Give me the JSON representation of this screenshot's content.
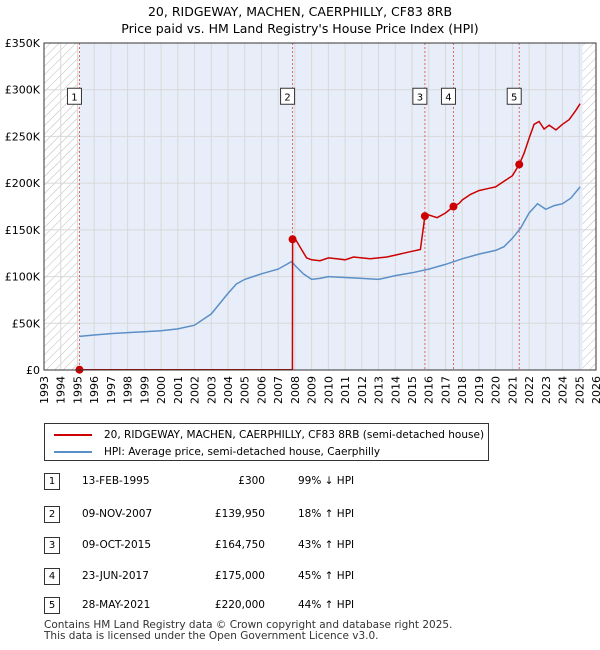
{
  "title": {
    "line1": "20, RIDGEWAY, MACHEN, CAERPHILLY, CF83 8RB",
    "line2": "Price paid vs. HM Land Registry's House Price Index (HPI)"
  },
  "colors": {
    "price_line": "#cc0000",
    "hpi_line": "#5b8fc7",
    "shade": "#e8eef9",
    "hatch": "#bbbbbb",
    "grid": "#d8d8d8",
    "vline": "#dd6666"
  },
  "chart_data": {
    "type": "line",
    "title": "Price paid vs. HM Land Registry's House Price Index (HPI)",
    "xlabel": "",
    "ylabel": "",
    "xlim": [
      1993,
      2026
    ],
    "ylim": [
      0,
      350000
    ],
    "y_ticks": [
      {
        "value": 0,
        "label": "£0"
      },
      {
        "value": 50000,
        "label": "£50K"
      },
      {
        "value": 100000,
        "label": "£100K"
      },
      {
        "value": 150000,
        "label": "£150K"
      },
      {
        "value": 200000,
        "label": "£200K"
      },
      {
        "value": 250000,
        "label": "£250K"
      },
      {
        "value": 300000,
        "label": "£300K"
      },
      {
        "value": 350000,
        "label": "£350K"
      }
    ],
    "x_ticks": [
      "1993",
      "1994",
      "1995",
      "1996",
      "1997",
      "1998",
      "1999",
      "2000",
      "2001",
      "2002",
      "2003",
      "2004",
      "2005",
      "2006",
      "2007",
      "2008",
      "2009",
      "2010",
      "2011",
      "2012",
      "2013",
      "2014",
      "2015",
      "2016",
      "2017",
      "2018",
      "2019",
      "2020",
      "2021",
      "2022",
      "2023",
      "2024",
      "2025",
      "2026"
    ],
    "hatched_ranges": [
      [
        1993,
        1995.12
      ],
      [
        2025.2,
        2026
      ]
    ],
    "shaded_range": [
      1995.12,
      2025.2
    ],
    "grid": true,
    "series": [
      {
        "name": "20, RIDGEWAY, MACHEN, CAERPHILLY, CF83 8RB (semi-detached house)",
        "color": "#cc0000",
        "points": [
          [
            1995.12,
            300
          ],
          [
            2007.85,
            300
          ],
          [
            2007.86,
            139950
          ],
          [
            2008.0,
            141000
          ],
          [
            2008.3,
            132000
          ],
          [
            2008.7,
            120000
          ],
          [
            2009.0,
            118000
          ],
          [
            2009.5,
            117000
          ],
          [
            2010.0,
            120000
          ],
          [
            2010.5,
            119000
          ],
          [
            2011.0,
            118000
          ],
          [
            2011.5,
            121000
          ],
          [
            2012.0,
            120000
          ],
          [
            2012.5,
            119000
          ],
          [
            2013.0,
            120000
          ],
          [
            2013.5,
            121000
          ],
          [
            2014.0,
            123000
          ],
          [
            2014.5,
            125000
          ],
          [
            2015.0,
            127000
          ],
          [
            2015.5,
            129000
          ],
          [
            2015.77,
            164750
          ],
          [
            2016.0,
            166000
          ],
          [
            2016.5,
            163000
          ],
          [
            2017.0,
            168000
          ],
          [
            2017.48,
            175000
          ],
          [
            2017.8,
            178000
          ],
          [
            2018.0,
            182000
          ],
          [
            2018.5,
            188000
          ],
          [
            2019.0,
            192000
          ],
          [
            2019.5,
            194000
          ],
          [
            2020.0,
            196000
          ],
          [
            2020.5,
            202000
          ],
          [
            2021.0,
            208000
          ],
          [
            2021.41,
            220000
          ],
          [
            2021.7,
            232000
          ],
          [
            2022.0,
            248000
          ],
          [
            2022.3,
            263000
          ],
          [
            2022.6,
            266000
          ],
          [
            2022.9,
            258000
          ],
          [
            2023.2,
            262000
          ],
          [
            2023.6,
            257000
          ],
          [
            2024.0,
            263000
          ],
          [
            2024.4,
            268000
          ],
          [
            2024.8,
            278000
          ],
          [
            2025.05,
            285000
          ]
        ]
      },
      {
        "name": "HPI: Average price, semi-detached house, Caerphilly",
        "color": "#5b8fc7",
        "points": [
          [
            1995.12,
            36000
          ],
          [
            1996.0,
            37500
          ],
          [
            1997.0,
            39000
          ],
          [
            1998.0,
            40000
          ],
          [
            1999.0,
            41000
          ],
          [
            2000.0,
            42000
          ],
          [
            2001.0,
            44000
          ],
          [
            2002.0,
            48000
          ],
          [
            2003.0,
            60000
          ],
          [
            2004.0,
            82000
          ],
          [
            2004.5,
            92000
          ],
          [
            2005.0,
            97000
          ],
          [
            2006.0,
            103000
          ],
          [
            2007.0,
            108000
          ],
          [
            2007.8,
            116000
          ],
          [
            2008.0,
            112000
          ],
          [
            2008.5,
            103000
          ],
          [
            2009.0,
            97000
          ],
          [
            2009.5,
            98000
          ],
          [
            2010.0,
            100000
          ],
          [
            2011.0,
            99000
          ],
          [
            2012.0,
            98000
          ],
          [
            2013.0,
            97000
          ],
          [
            2014.0,
            101000
          ],
          [
            2015.0,
            104000
          ],
          [
            2016.0,
            108000
          ],
          [
            2017.0,
            113000
          ],
          [
            2018.0,
            119000
          ],
          [
            2019.0,
            124000
          ],
          [
            2020.0,
            128000
          ],
          [
            2020.5,
            132000
          ],
          [
            2021.0,
            141000
          ],
          [
            2021.5,
            152000
          ],
          [
            2022.0,
            168000
          ],
          [
            2022.5,
            178000
          ],
          [
            2023.0,
            172000
          ],
          [
            2023.5,
            176000
          ],
          [
            2024.0,
            178000
          ],
          [
            2024.5,
            184000
          ],
          [
            2025.05,
            196000
          ]
        ]
      }
    ],
    "sales": [
      {
        "id": "1",
        "x": 1995.12,
        "y": 300
      },
      {
        "id": "2",
        "x": 2007.86,
        "y": 139950
      },
      {
        "id": "3",
        "x": 2015.77,
        "y": 164750
      },
      {
        "id": "4",
        "x": 2017.48,
        "y": 175000
      },
      {
        "id": "5",
        "x": 2021.41,
        "y": 220000
      }
    ],
    "marker_label_y": 293000
  },
  "legend": {
    "price_label": "20, RIDGEWAY, MACHEN, CAERPHILLY, CF83 8RB (semi-detached house)",
    "hpi_label": "HPI: Average price, semi-detached house, Caerphilly"
  },
  "transactions": [
    {
      "num": "1",
      "date": "13-FEB-1995",
      "price": "£300",
      "hpi": "99% ↓ HPI"
    },
    {
      "num": "2",
      "date": "09-NOV-2007",
      "price": "£139,950",
      "hpi": "18% ↑ HPI"
    },
    {
      "num": "3",
      "date": "09-OCT-2015",
      "price": "£164,750",
      "hpi": "43% ↑ HPI"
    },
    {
      "num": "4",
      "date": "23-JUN-2017",
      "price": "£175,000",
      "hpi": "45% ↑ HPI"
    },
    {
      "num": "5",
      "date": "28-MAY-2021",
      "price": "£220,000",
      "hpi": "44% ↑ HPI"
    }
  ],
  "footer": {
    "line1": "Contains HM Land Registry data © Crown copyright and database right 2025.",
    "line2": "This data is licensed under the Open Government Licence v3.0."
  }
}
